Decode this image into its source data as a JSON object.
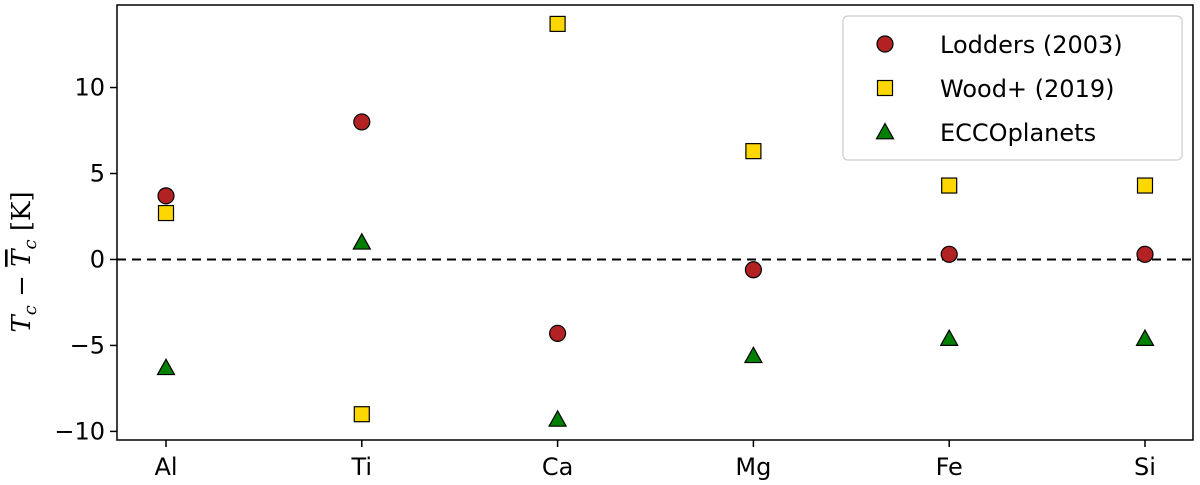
{
  "chart_data": {
    "type": "scatter",
    "categories": [
      "Al",
      "Ti",
      "Ca",
      "Mg",
      "Fe",
      "Si"
    ],
    "series": [
      {
        "name": "Lodders (2003)",
        "marker": "circle",
        "color": "#b22222",
        "values": [
          3.7,
          8.0,
          -4.3,
          -0.6,
          0.3,
          0.3
        ]
      },
      {
        "name": "Wood+ (2019)",
        "marker": "square",
        "color": "#ffd700",
        "values": [
          2.7,
          -9.0,
          13.7,
          6.3,
          4.3,
          4.3
        ]
      },
      {
        "name": "ECCOplanets",
        "marker": "triangle",
        "color": "#008000",
        "values": [
          -6.3,
          1.0,
          -9.3,
          -5.6,
          -4.6,
          -4.6
        ]
      }
    ],
    "ylabel_main": "T",
    "ylabel_sub": "c",
    "ylabel_unit": "[K]",
    "ylim": [
      -10.5,
      14.8
    ],
    "yticks": [
      -10,
      -5,
      0,
      5,
      10
    ],
    "ytick_labels": [
      "−10",
      "−5",
      "0",
      "5",
      "10"
    ],
    "reference_line": {
      "y": 0,
      "style": "dashed",
      "color": "#000000"
    },
    "grid": false,
    "legend_position": "top-right"
  }
}
